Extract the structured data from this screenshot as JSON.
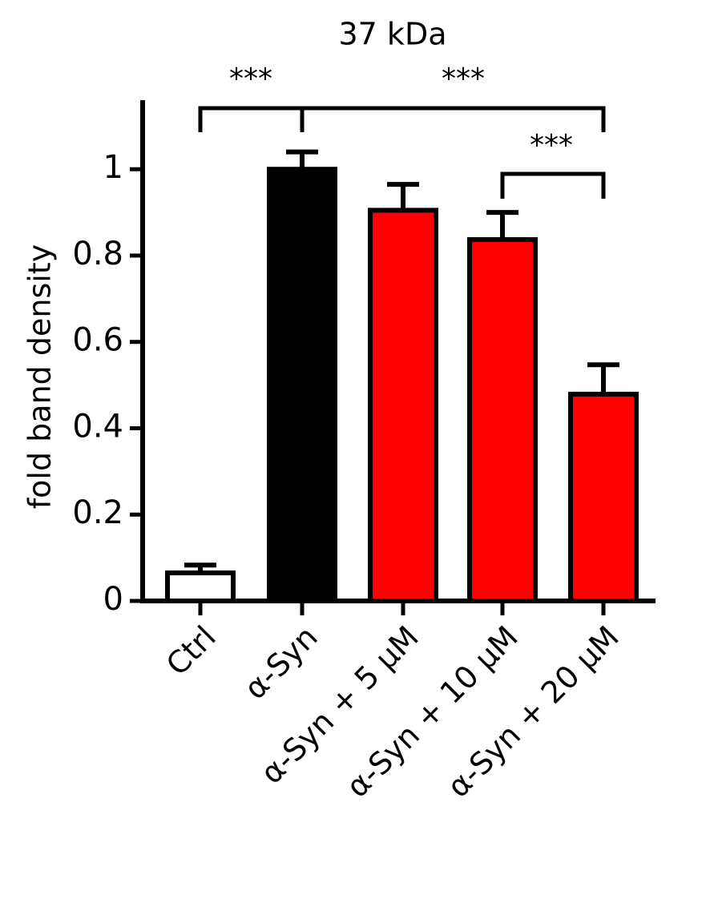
{
  "chart_data": {
    "type": "bar",
    "title": "37 kDa",
    "y_label": "fold band density",
    "categories": [
      "Ctrl",
      "α-Syn",
      "α-Syn + 5 μM",
      "α-Syn + 10 μM",
      "α-Syn + 20 μM"
    ],
    "values": [
      0.065,
      1.0,
      0.905,
      0.837,
      0.479
    ],
    "errors": [
      0.018,
      0.04,
      0.06,
      0.063,
      0.068
    ],
    "colors": [
      "#ffffff",
      "#000000",
      "#ff0000",
      "#ff0000",
      "#ff0000"
    ],
    "ylim": [
      0,
      1.16
    ],
    "yticks": [
      0,
      0.2,
      0.4,
      0.6,
      0.8,
      1
    ],
    "grid": false,
    "annotations": [
      "***",
      "***",
      "***"
    ]
  }
}
